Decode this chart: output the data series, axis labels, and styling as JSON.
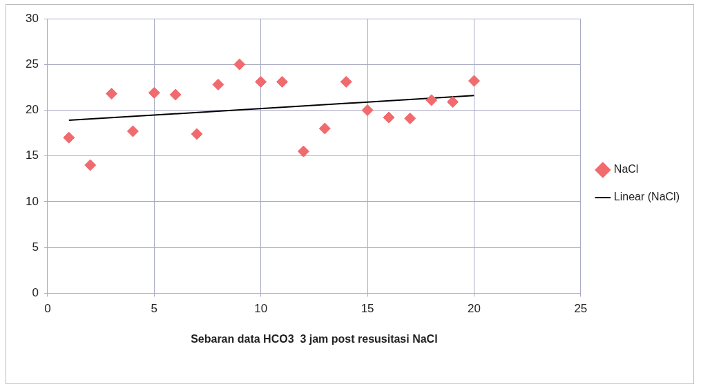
{
  "chart_data": {
    "type": "scatter",
    "xlabel": "Sebaran data HCO3  3 jam post resusitasi NaCl",
    "x": [
      1,
      2,
      3,
      4,
      5,
      6,
      7,
      8,
      9,
      10,
      11,
      12,
      13,
      14,
      15,
      16,
      17,
      18,
      19,
      20
    ],
    "series": [
      {
        "name": "NaCl",
        "color": "#f06a6e",
        "values": [
          17,
          14,
          21.8,
          17.7,
          21.9,
          21.7,
          17.4,
          22.8,
          25,
          23.1,
          23.1,
          15.5,
          18,
          23.1,
          20,
          19.2,
          19.1,
          21.1,
          20.9,
          23.2
        ]
      },
      {
        "name": "Linear (NaCl)",
        "type": "line",
        "color": "#000000",
        "x": [
          1,
          20
        ],
        "values": [
          18.9,
          21.6
        ],
        "marker": "none"
      }
    ],
    "xlim": [
      0,
      25
    ],
    "xticks": [
      0,
      5,
      10,
      15,
      20,
      25
    ],
    "ylim": [
      0,
      30
    ],
    "yticks": [
      0,
      5,
      10,
      15,
      20,
      25,
      30
    ],
    "grid": true,
    "legend": "right",
    "marker": "diamond"
  }
}
